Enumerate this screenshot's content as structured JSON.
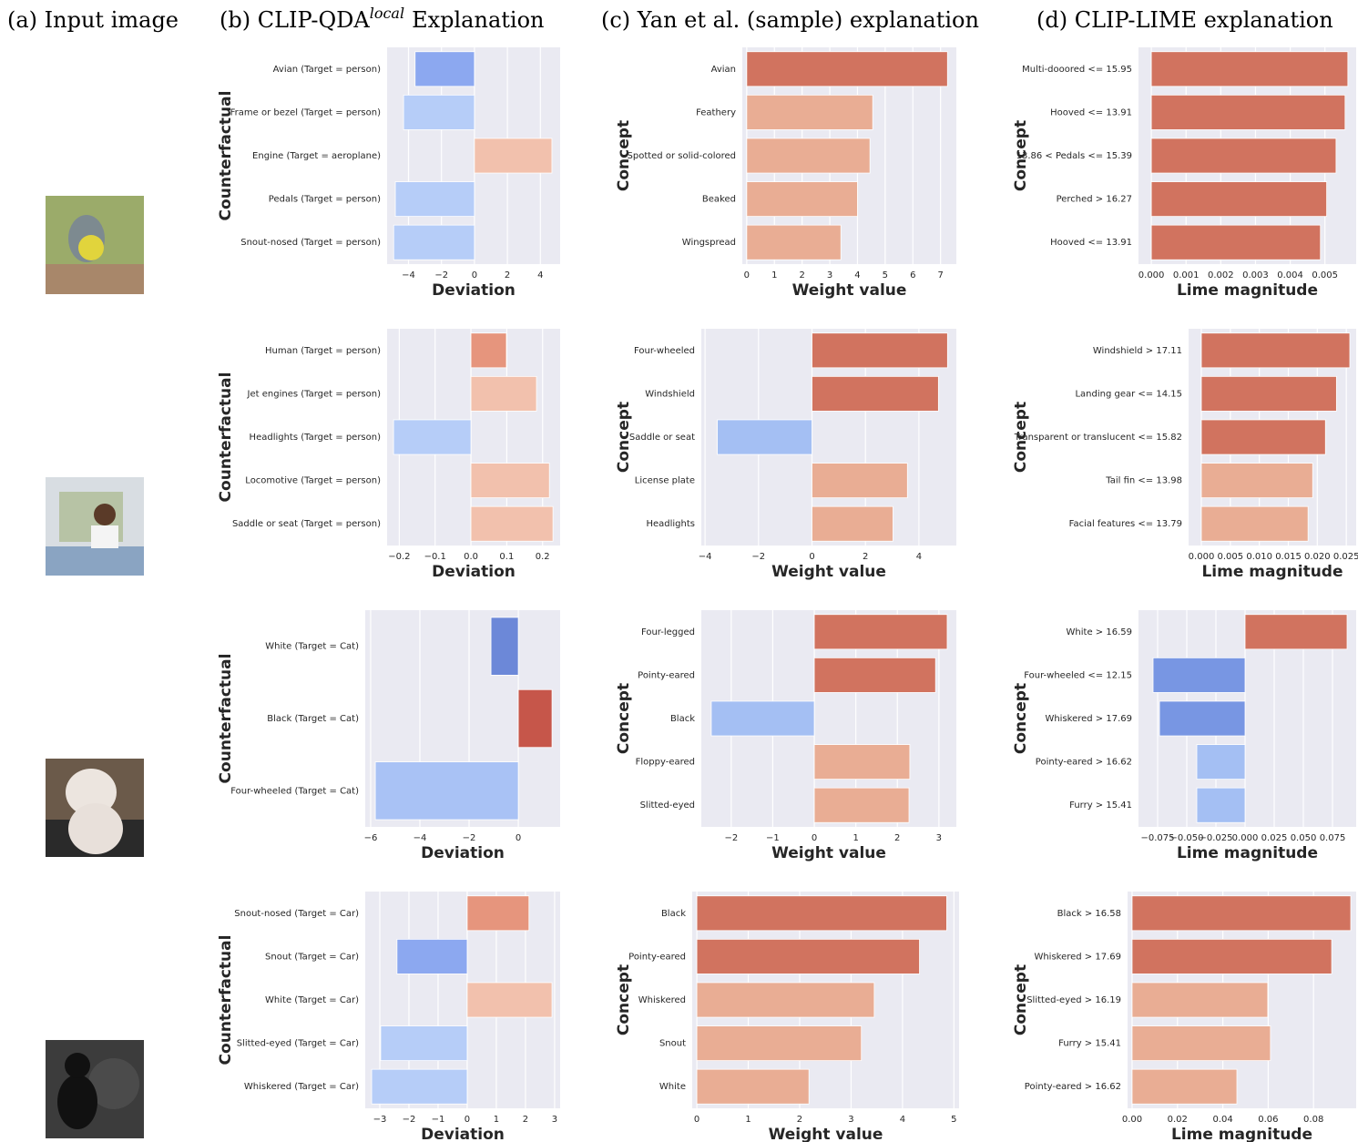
{
  "headers": {
    "a": "(a) Input image",
    "b": {
      "prefix": "(b) CLIP-QDA",
      "sup": "local",
      "suffix": "Explanation"
    },
    "c": "(c) Yan et al. (sample) explanation",
    "d": "(d) CLIP-LIME explanation"
  },
  "chart_data": [
    {
      "type": "barh",
      "ylabel": "Counterfactual",
      "xlabel": "Deviation",
      "categories": [
        "Avian (Target = person)",
        "Frame or bezel (Target = person)",
        "Engine (Target = aeroplane)",
        "Pedals (Target = person)",
        "Snout-nosed (Target = person)"
      ],
      "values": [
        -3.6,
        -4.3,
        4.7,
        -4.8,
        -4.9
      ],
      "colors": [
        "#8ca8f0",
        "#b6cdf8",
        "#f2c1ad",
        "#b6cdf8",
        "#b6cdf8"
      ],
      "xlim": [
        -5.3,
        5.2
      ],
      "xticks": [
        {
          "value": -4,
          "label": "−4"
        },
        {
          "value": -2,
          "label": "−2"
        },
        0,
        2,
        4
      ],
      "grid": true
    },
    {
      "type": "barh",
      "ylabel": "Concept",
      "xlabel": "Weight value",
      "categories": [
        "Avian",
        "Feathery",
        "Spotted or solid-colored",
        "Beaked",
        "Wingspread"
      ],
      "values": [
        7.25,
        4.55,
        4.45,
        4.0,
        3.4
      ],
      "colors": [
        "#d1735f",
        "#e9ad94",
        "#e9ad94",
        "#e9ad94",
        "#e9ad94"
      ],
      "xlim": [
        -0.16,
        7.57
      ],
      "xticks": [
        0,
        1,
        2,
        3,
        4,
        5,
        6,
        7
      ],
      "grid": true
    },
    {
      "type": "barh",
      "ylabel": "Concept",
      "xlabel": "Lime magnitude",
      "categories": [
        "Multi-dooored <= 15.95",
        "Hooved  <= 13.91",
        "13.86 < Pedals <= 15.39",
        "Perched > 16.27",
        "Hooved <= 13.91"
      ],
      "values": [
        0.00566,
        0.00558,
        0.00532,
        0.00505,
        0.00487
      ],
      "colors": [
        "#d1735f",
        "#d1735f",
        "#d1735f",
        "#d1735f",
        "#d1735f"
      ],
      "xlim": [
        -0.00037,
        0.0059
      ],
      "xticks": [
        {
          "value": 0,
          "label": "0.000"
        },
        0.001,
        0.002,
        0.003,
        0.004,
        0.005
      ],
      "grid": true
    },
    {
      "type": "barh",
      "ylabel": "Counterfactual",
      "xlabel": "Deviation",
      "categories": [
        "Human (Target = person)",
        "Jet engines (Target = person)",
        "Headlights (Target = person)",
        "Locomotive (Target = person)",
        "Saddle or seat (Target = person)"
      ],
      "values": [
        0.099,
        0.183,
        -0.216,
        0.219,
        0.229
      ],
      "colors": [
        "#e6957d",
        "#f2c1ad",
        "#b6cdf8",
        "#f2c1ad",
        "#f2c1ad"
      ],
      "xlim": [
        -0.234,
        0.249
      ],
      "xticks": [
        {
          "value": -0.2,
          "label": "−0.2"
        },
        {
          "value": -0.1,
          "label": "−0.1"
        },
        {
          "value": 0,
          "label": "0.0"
        },
        0.1,
        0.2
      ],
      "grid": true
    },
    {
      "type": "barh",
      "ylabel": "Concept",
      "xlabel": "Weight value",
      "categories": [
        "Four-wheeled",
        "Windshield",
        "Saddle or seat",
        "License plate",
        "Headlights"
      ],
      "values": [
        5.07,
        4.73,
        -3.54,
        3.57,
        3.03
      ],
      "colors": [
        "#d1735f",
        "#d1735f",
        "#a4bff3",
        "#e9ad94",
        "#e9ad94"
      ],
      "xlim": [
        -4.14,
        5.4
      ],
      "xticks": [
        {
          "value": -4,
          "label": "−4"
        },
        {
          "value": -2,
          "label": "−2"
        },
        0,
        2,
        4
      ],
      "grid": true
    },
    {
      "type": "barh",
      "ylabel": "Concept",
      "xlabel": "Lime magnitude",
      "categories": [
        "Windshield > 17.11",
        "Landing gear <= 14.15",
        "Transparent or translucent <= 15.82",
        "Tail fin <= 13.98",
        "Facial features <= 13.79"
      ],
      "values": [
        0.0256,
        0.0233,
        0.0214,
        0.0192,
        0.0184
      ],
      "colors": [
        "#d1735f",
        "#d1735f",
        "#d1735f",
        "#e9ad94",
        "#e9ad94"
      ],
      "xlim": [
        -0.0022,
        0.0267
      ],
      "xticks": [
        {
          "value": 0,
          "label": "0.000"
        },
        0.005,
        {
          "value": 0.01,
          "label": "0.010"
        },
        0.015,
        {
          "value": 0.02,
          "label": "0.020"
        },
        0.025
      ],
      "grid": true
    },
    {
      "type": "barh",
      "ylabel": "Counterfactual",
      "xlabel": "Deviation",
      "categories": [
        "White (Target = Cat)",
        "Black (Target = Cat)",
        "Four-wheeled (Target = Cat)"
      ],
      "values": [
        -1.11,
        1.37,
        -5.81
      ],
      "colors": [
        "#6c88d8",
        "#c6564a",
        "#a9c2f5"
      ],
      "xlim": [
        -6.22,
        1.7
      ],
      "xticks": [
        {
          "value": -6,
          "label": "−6"
        },
        {
          "value": -4,
          "label": "−4"
        },
        {
          "value": -2,
          "label": "−2"
        },
        0
      ],
      "grid": true
    },
    {
      "type": "barh",
      "ylabel": "Concept",
      "xlabel": "Weight value",
      "categories": [
        "Four-legged",
        "Pointy-eared",
        "Black",
        "Floppy-eared",
        "Slitted-eyed"
      ],
      "values": [
        3.2,
        2.92,
        -2.48,
        2.3,
        2.28
      ],
      "colors": [
        "#d1735f",
        "#d1735f",
        "#a4bff3",
        "#e9ad94",
        "#e9ad94"
      ],
      "xlim": [
        -2.72,
        3.42
      ],
      "xticks": [
        {
          "value": -2,
          "label": "−2"
        },
        {
          "value": -1,
          "label": "−1"
        },
        0,
        1,
        2,
        3
      ],
      "grid": true
    },
    {
      "type": "barh",
      "ylabel": "Concept",
      "xlabel": "Lime magnitude",
      "categories": [
        "White > 16.59",
        "Four-wheeled <= 12.15",
        "Whiskered > 17.69",
        "Pointy-eared > 16.62",
        "Furry > 15.41"
      ],
      "values": [
        0.0875,
        -0.0789,
        -0.0734,
        -0.0414,
        -0.0414
      ],
      "colors": [
        "#d1735f",
        "#7896e3",
        "#7896e3",
        "#a4bff3",
        "#a4bff3"
      ],
      "xlim": [
        -0.0914,
        0.0953
      ],
      "xticks": [
        {
          "value": -0.075,
          "label": "−0.075"
        },
        {
          "value": -0.05,
          "label": "−0.050"
        },
        {
          "value": -0.025,
          "label": "−0.025"
        },
        {
          "value": 0,
          "label": "0.000"
        },
        0.025,
        {
          "value": 0.05,
          "label": "0.050"
        },
        0.075
      ],
      "grid": true
    },
    {
      "type": "barh",
      "ylabel": "Counterfactual",
      "xlabel": "Deviation",
      "categories": [
        "Snout-nosed (Target = Car)",
        "Snout (Target = Car)",
        "White (Target = Car)",
        "Slitted-eyed (Target = Car)",
        "Whiskered (Target = Car)"
      ],
      "values": [
        2.12,
        -2.41,
        2.91,
        -2.97,
        -3.28
      ],
      "colors": [
        "#e6957d",
        "#8ca8f0",
        "#f2c1ad",
        "#b6cdf8",
        "#b6cdf8"
      ],
      "xlim": [
        -3.5,
        3.19
      ],
      "xticks": [
        {
          "value": -3,
          "label": "−3"
        },
        {
          "value": -2,
          "label": "−2"
        },
        {
          "value": -1,
          "label": "−1"
        },
        0,
        1,
        2,
        3
      ],
      "grid": true
    },
    {
      "type": "barh",
      "ylabel": "Concept",
      "xlabel": "Weight value",
      "categories": [
        "Black",
        "Pointy-eared",
        "Whiskered",
        "Snout",
        "White"
      ],
      "values": [
        4.86,
        4.33,
        3.45,
        3.2,
        2.18
      ],
      "colors": [
        "#d1735f",
        "#d1735f",
        "#e9ad94",
        "#e9ad94",
        "#e9ad94"
      ],
      "xlim": [
        -0.09,
        5.1
      ],
      "xticks": [
        0,
        1,
        2,
        3,
        4,
        5
      ],
      "grid": true
    },
    {
      "type": "barh",
      "ylabel": "Concept",
      "xlabel": "Lime magnitude",
      "categories": [
        "Black > 16.58",
        "Whiskered > 17.69",
        "Slitted-eyed > 16.19",
        "Furry > 15.41",
        "Pointy-eared > 16.62"
      ],
      "values": [
        0.0964,
        0.088,
        0.0598,
        0.061,
        0.0462
      ],
      "colors": [
        "#d1735f",
        "#d1735f",
        "#e9ad94",
        "#e9ad94",
        "#e9ad94"
      ],
      "xlim": [
        -0.002,
        0.0988
      ],
      "xticks": [
        {
          "value": 0,
          "label": "0.00"
        },
        0.02,
        0.04,
        0.06,
        0.08
      ],
      "grid": true
    }
  ]
}
